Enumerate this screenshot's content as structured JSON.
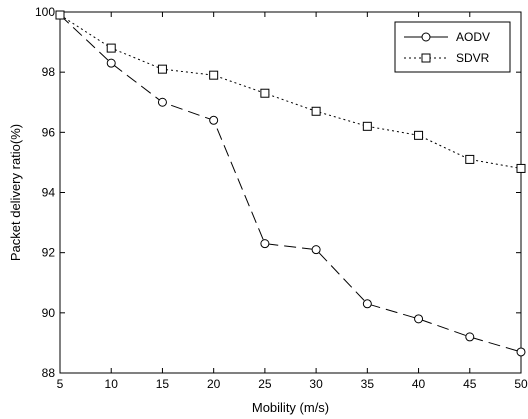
{
  "chart_data": {
    "type": "line",
    "x": [
      5,
      10,
      15,
      20,
      25,
      30,
      35,
      40,
      45,
      50
    ],
    "xlabel": "Mobility (m/s)",
    "ylabel": "Packet delivery ratio(%)",
    "xlim": [
      5,
      50
    ],
    "ylim": [
      88,
      100
    ],
    "xticks": [
      "5",
      "10",
      "15",
      "20",
      "25",
      "30",
      "35",
      "40",
      "45",
      "50"
    ],
    "yticks": [
      "88",
      "90",
      "92",
      "94",
      "96",
      "98",
      "100"
    ],
    "grid": false,
    "legend_position": "top-right",
    "series": [
      {
        "name": "AODV",
        "values": [
          99.9,
          98.3,
          97.0,
          96.4,
          92.3,
          92.1,
          90.3,
          89.8,
          89.2,
          88.7
        ],
        "marker": "circle",
        "line_style": "long-dash",
        "color": "#000000"
      },
      {
        "name": "SDVR",
        "values": [
          99.9,
          98.8,
          98.1,
          97.9,
          97.3,
          96.7,
          96.2,
          95.9,
          95.1,
          94.8
        ],
        "marker": "square",
        "line_style": "dotted",
        "color": "#000000"
      }
    ]
  }
}
